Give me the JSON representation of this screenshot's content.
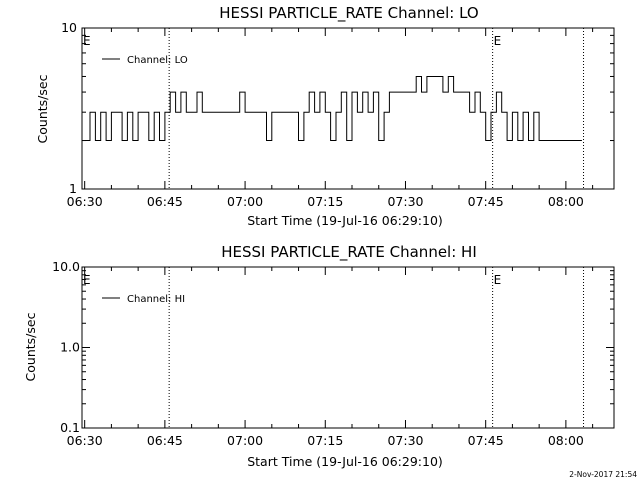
{
  "footer_stamp": "2-Nov-2017 21:54",
  "chart_data": [
    {
      "type": "line",
      "title": "HESSI PARTICLE_RATE Channel: LO",
      "xlabel": "Start Time (19-Jul-16 06:29:10)",
      "ylabel": "Counts/sec",
      "y_scale": "log",
      "ylim": [
        1,
        10
      ],
      "y_ticks": [
        "1",
        "10"
      ],
      "x_range_minutes_after_0630": [
        -0.5,
        99
      ],
      "x_ticks": [
        "06:30",
        "06:45",
        "07:00",
        "07:15",
        "07:30",
        "07:45",
        "08:00"
      ],
      "x_tick_minutes": [
        0,
        15,
        30,
        45,
        60,
        75,
        90
      ],
      "event_lines_minutes": [
        15.8,
        76.3,
        93.3
      ],
      "event_markers": [
        {
          "label": "E",
          "at_minutes": 0
        },
        {
          "label": "E",
          "at_minutes": 76.3
        }
      ],
      "legend": {
        "position": "top-left",
        "entries": [
          "Channel: LO"
        ]
      },
      "grid": false,
      "series": [
        {
          "name": "Channel: LO",
          "x_minutes": [
            0,
            1,
            2,
            3,
            4,
            5,
            6,
            7,
            8,
            9,
            10,
            11,
            12,
            13,
            14,
            15,
            16,
            17,
            18,
            19,
            20,
            21,
            22,
            23,
            24,
            25,
            26,
            27,
            28,
            29,
            30,
            31,
            32,
            33,
            34,
            35,
            36,
            37,
            38,
            39,
            40,
            41,
            42,
            43,
            44,
            45,
            46,
            47,
            48,
            49,
            50,
            51,
            52,
            53,
            54,
            55,
            56,
            57,
            58,
            59,
            60,
            61,
            62,
            63,
            64,
            65,
            66,
            67,
            68,
            69,
            70,
            71,
            72,
            73,
            74,
            75,
            76,
            77,
            78,
            79,
            80,
            81,
            82,
            83,
            84,
            85,
            86,
            87,
            88,
            89,
            90,
            91,
            92
          ],
          "values": [
            2,
            3,
            2,
            3,
            2,
            3,
            3,
            2,
            3,
            2,
            3,
            3,
            2,
            3,
            2,
            3,
            4,
            3,
            4,
            3,
            3,
            4,
            3,
            3,
            3,
            3,
            3,
            3,
            3,
            4,
            3,
            3,
            3,
            3,
            2,
            3,
            3,
            3,
            3,
            3,
            2,
            3,
            4,
            3,
            4,
            3,
            2,
            3,
            4,
            2,
            4,
            3,
            4,
            3,
            4,
            2,
            3,
            4,
            4,
            4,
            4,
            4,
            5,
            4,
            5,
            5,
            5,
            4,
            5,
            4,
            4,
            4,
            3,
            4,
            3,
            2,
            3,
            4,
            3,
            2,
            3,
            2,
            3,
            2,
            3,
            2,
            2,
            2,
            2,
            2,
            2,
            2,
            2
          ]
        }
      ]
    },
    {
      "type": "line",
      "title": "HESSI PARTICLE_RATE Channel: HI",
      "xlabel": "Start Time (19-Jul-16 06:29:10)",
      "ylabel": "Counts/sec",
      "y_scale": "log",
      "ylim": [
        0.1,
        10
      ],
      "y_ticks": [
        "0.1",
        "1.0",
        "10.0"
      ],
      "x_range_minutes_after_0630": [
        -0.5,
        99
      ],
      "x_ticks": [
        "06:30",
        "06:45",
        "07:00",
        "07:15",
        "07:30",
        "07:45",
        "08:00"
      ],
      "x_tick_minutes": [
        0,
        15,
        30,
        45,
        60,
        75,
        90
      ],
      "event_lines_minutes": [
        15.8,
        76.3,
        93.3
      ],
      "event_markers": [
        {
          "label": "E",
          "at_minutes": 0
        },
        {
          "label": "E",
          "at_minutes": 76.3
        }
      ],
      "legend": {
        "position": "top-left",
        "entries": [
          "Channel: HI"
        ]
      },
      "grid": false,
      "series": [
        {
          "name": "Channel: HI",
          "x_minutes": [],
          "values": []
        }
      ]
    }
  ]
}
